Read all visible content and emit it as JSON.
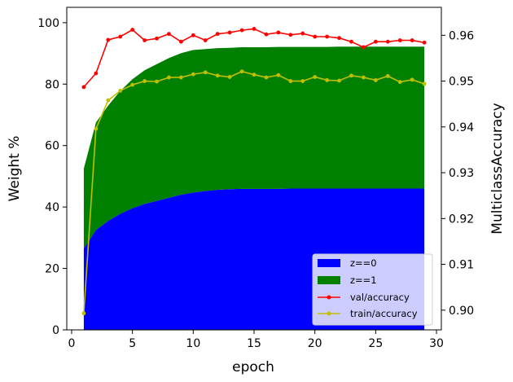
{
  "chart_data": {
    "type": "area",
    "x": [
      1,
      2,
      3,
      4,
      5,
      6,
      7,
      8,
      9,
      10,
      11,
      12,
      13,
      14,
      15,
      16,
      17,
      18,
      19,
      20,
      21,
      22,
      23,
      24,
      25,
      26,
      27,
      28,
      29
    ],
    "xlabel": "epoch",
    "xlim": [
      -0.4,
      30.4
    ],
    "xticks": [
      0,
      5,
      10,
      15,
      20,
      25,
      30
    ],
    "left_axis": {
      "label": "Weight %",
      "ylim": [
        0,
        105
      ],
      "ticks": [
        0,
        20,
        40,
        60,
        80,
        100
      ]
    },
    "right_axis": {
      "label": "MulticlassAccuracy",
      "ylim": [
        0.8957,
        0.9661
      ],
      "ticks": [
        0.9,
        0.91,
        0.92,
        0.93,
        0.94,
        0.95,
        0.96
      ],
      "tick_labels": [
        "0.90",
        "0.91",
        "0.92",
        "0.93",
        "0.94",
        "0.95",
        "0.96"
      ]
    },
    "stacked_area": [
      {
        "name": "z==0",
        "color": "#0000ff",
        "values": [
          26.5,
          32.5,
          35.5,
          37.8,
          39.6,
          41.0,
          42.0,
          43.0,
          44.0,
          44.7,
          45.2,
          45.6,
          45.8,
          45.9,
          45.9,
          45.9,
          45.9,
          46.0,
          46.0,
          46.0,
          46.0,
          46.0,
          46.0,
          46.0,
          46.0,
          46.0,
          46.0,
          46.0,
          46.0
        ]
      },
      {
        "name": "z==1",
        "color": "#008000",
        "values": [
          26.0,
          35.0,
          37.5,
          40.0,
          42.0,
          43.5,
          44.5,
          45.5,
          46.1,
          46.4,
          46.2,
          46.1,
          46.0,
          46.1,
          46.1,
          46.1,
          46.2,
          46.1,
          46.1,
          46.1,
          46.1,
          46.2,
          46.2,
          46.2,
          46.2,
          46.2,
          46.2,
          46.2,
          46.2
        ]
      }
    ],
    "lines": [
      {
        "name": "val/accuracy",
        "color": "#ff0000",
        "axis": "right",
        "values": [
          0.9487,
          0.9517,
          0.959,
          0.9597,
          0.9612,
          0.9589,
          0.9593,
          0.9603,
          0.9586,
          0.96,
          0.9589,
          0.9603,
          0.9606,
          0.9611,
          0.9614,
          0.9602,
          0.9606,
          0.9601,
          0.9604,
          0.9597,
          0.9597,
          0.9594,
          0.9586,
          0.9574,
          0.9586,
          0.9586,
          0.9589,
          0.9589,
          0.9584
        ]
      },
      {
        "name": "train/accuracy",
        "color": "#bfbf00",
        "axis": "right",
        "values": [
          0.8993,
          0.9396,
          0.9458,
          0.9479,
          0.9492,
          0.95,
          0.9499,
          0.9508,
          0.9508,
          0.9515,
          0.9519,
          0.9512,
          0.9509,
          0.9521,
          0.9514,
          0.9508,
          0.9513,
          0.95,
          0.95,
          0.9509,
          0.9502,
          0.9501,
          0.9512,
          0.9508,
          0.9502,
          0.9511,
          0.9498,
          0.9503,
          0.9494
        ]
      }
    ],
    "legend": {
      "position": "lower-right",
      "entries": [
        "z==0",
        "z==1",
        "val/accuracy",
        "train/accuracy"
      ]
    },
    "grid": false
  }
}
